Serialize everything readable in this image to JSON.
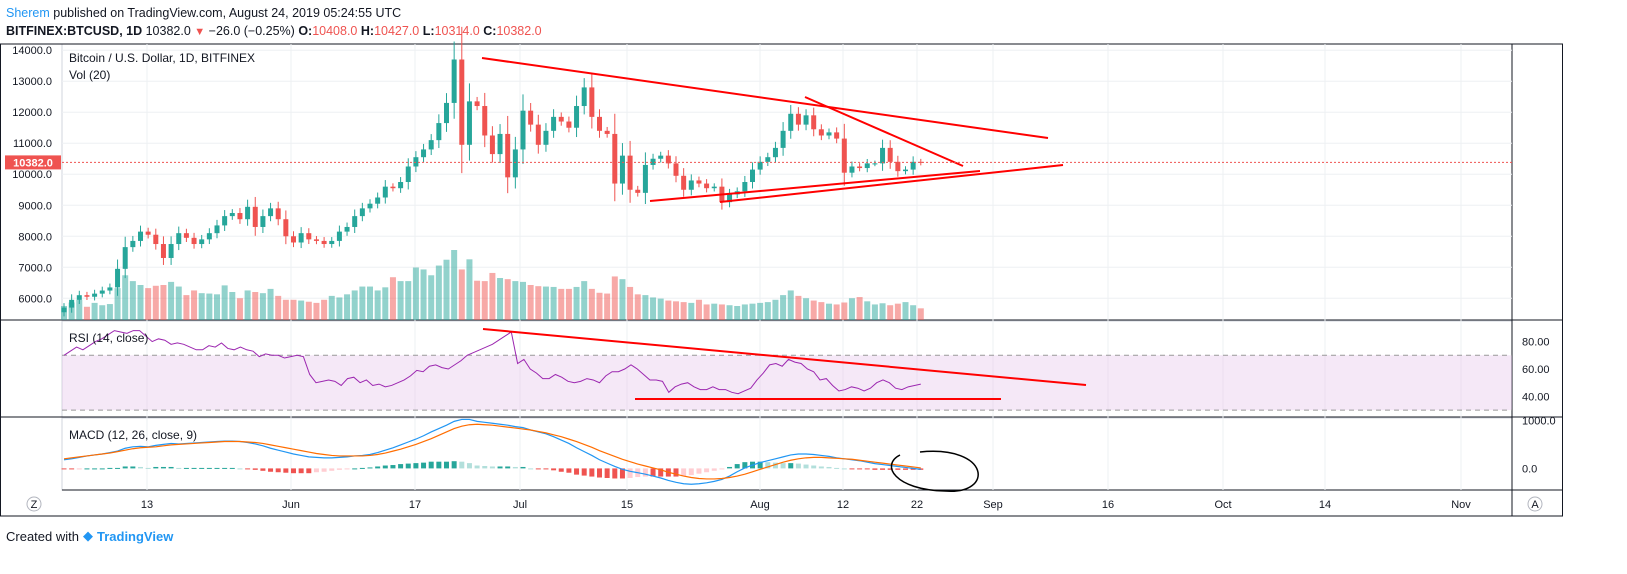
{
  "header": {
    "author": "Sherem",
    "published_text": "published on TradingView.com, August 24, 2019 05:24:55 UTC",
    "symbol": "BITFINEX:BTCUSD, 1D",
    "last": "10382.0",
    "change": "−26.0 (−0.25%)",
    "o_label": "O:",
    "o": "10408.0",
    "h_label": "H:",
    "h": "10427.0",
    "l_label": "L:",
    "l": "10314.0",
    "c_label": "C:",
    "c": "10382.0"
  },
  "footer": {
    "created_with": "Created with",
    "brand": "TradingView"
  },
  "colors": {
    "up": "#26a69a",
    "down": "#ef5350",
    "rsi": "#9c27b0",
    "macd": "#2196f3",
    "signal": "#ff6d00",
    "trend": "#ff0000"
  },
  "chart_data": [
    {
      "type": "candlestick",
      "title": "Bitcoin / U.S. Dollar, 1D, BITFINEX",
      "subtitle": "Vol (20)",
      "last_price_label": "10382.0",
      "ylim": [
        5300,
        14200
      ],
      "yticks": [
        "14000.0",
        "13000.0",
        "12000.0",
        "11000.0",
        "10000.0",
        "9000.0",
        "8000.0",
        "7000.0",
        "6000.0"
      ],
      "xticks": [
        "13",
        "Jun",
        "17",
        "Jul",
        "15",
        "Aug",
        "12",
        "22",
        "Sep",
        "16",
        "Oct",
        "14",
        "Nov"
      ],
      "close": [
        5700,
        5950,
        6100,
        6050,
        6150,
        6250,
        6350,
        6950,
        7650,
        7850,
        8150,
        8050,
        7750,
        7300,
        7750,
        8100,
        7950,
        7750,
        7900,
        8100,
        8350,
        8650,
        8750,
        8550,
        8950,
        8300,
        8650,
        8900,
        8550,
        8000,
        7800,
        8100,
        7900,
        7850,
        7750,
        7850,
        8150,
        8300,
        8650,
        8900,
        9050,
        9250,
        9600,
        9550,
        9750,
        10250,
        10550,
        10800,
        11100,
        11650,
        12300,
        13700,
        10950,
        12350,
        12200,
        11250,
        10650,
        11300,
        9900,
        10800,
        12050,
        11600,
        10950,
        11400,
        11850,
        11700,
        11500,
        12200,
        12800,
        11850,
        11400,
        11300,
        9700,
        10600,
        9500,
        9400,
        10300,
        10500,
        10600,
        10350,
        9950,
        9500,
        9800,
        9700,
        9550,
        9600,
        9100,
        9350,
        9450,
        9750,
        10150,
        10400,
        10550,
        10850,
        11400,
        11950,
        11600,
        11900,
        11450,
        11250,
        11350,
        11150,
        10050,
        10250,
        10200,
        10350,
        10350,
        10850,
        10400,
        10100,
        10150,
        10400,
        10382
      ],
      "volume": [
        360,
        450,
        520,
        340,
        440,
        380,
        410,
        820,
        1150,
        1000,
        900,
        820,
        880,
        900,
        980,
        860,
        640,
        760,
        690,
        680,
        660,
        890,
        720,
        560,
        760,
        720,
        690,
        800,
        620,
        520,
        520,
        500,
        470,
        440,
        520,
        620,
        580,
        660,
        760,
        860,
        860,
        760,
        840,
        1100,
        1000,
        1000,
        1350,
        1300,
        1150,
        1400,
        1550,
        1800,
        1300,
        1560,
        1010,
        1000,
        1210,
        1080,
        1050,
        1000,
        980,
        900,
        870,
        860,
        850,
        800,
        800,
        850,
        1000,
        800,
        700,
        680,
        1120,
        1050,
        850,
        660,
        640,
        580,
        550,
        500,
        480,
        460,
        440,
        520,
        400,
        420,
        400,
        380,
        360,
        400,
        420,
        440,
        460,
        520,
        640,
        760,
        620,
        560,
        500,
        460,
        420,
        400,
        450,
        560,
        590,
        480,
        400,
        430,
        380,
        420,
        460,
        380,
        300
      ]
    },
    {
      "type": "line",
      "title": "RSI (14, close)",
      "ylim": [
        25,
        95
      ],
      "yticks": [
        "80.00",
        "60.00",
        "40.00"
      ],
      "bands": [
        30,
        70
      ],
      "values": [
        70,
        73,
        76,
        74,
        77,
        80,
        82,
        85,
        88,
        87,
        86,
        88,
        88,
        84,
        80,
        82,
        81,
        78,
        79,
        78,
        76,
        74,
        74,
        77,
        76,
        79,
        75,
        74,
        76,
        74,
        73,
        69,
        71,
        70,
        70,
        68,
        69,
        70,
        69,
        56,
        50,
        51,
        52,
        51,
        48,
        53,
        54,
        50,
        52,
        48,
        49,
        47,
        48,
        50,
        52,
        55,
        59,
        58,
        62,
        63,
        61,
        60,
        63,
        66,
        70,
        72,
        74,
        76,
        78,
        81,
        84,
        87,
        64,
        67,
        60,
        57,
        53,
        53,
        56,
        54,
        51,
        50,
        51,
        53,
        52,
        50,
        55,
        58,
        58,
        60,
        63,
        60,
        56,
        52,
        52,
        51,
        43,
        47,
        49,
        50,
        47,
        45,
        45,
        47,
        45,
        45,
        43,
        42,
        44,
        46,
        52,
        57,
        63,
        64,
        62,
        67,
        65,
        64,
        60,
        58,
        52,
        53,
        48,
        44,
        45,
        47,
        46,
        44,
        46,
        50,
        52,
        50,
        46,
        45,
        47,
        48,
        49
      ]
    },
    {
      "type": "bar+line",
      "title": "MACD (12, 26, close, 9)",
      "ylim": [
        -450,
        1050
      ],
      "yticks": [
        "1000.0",
        "0.0"
      ],
      "macd": [
        180,
        200,
        230,
        260,
        280,
        300,
        330,
        360,
        420,
        450,
        460,
        450,
        480,
        500,
        520,
        510,
        520,
        530,
        540,
        550,
        560,
        570,
        570,
        560,
        540,
        510,
        470,
        420,
        380,
        340,
        300,
        270,
        240,
        230,
        220,
        220,
        230,
        240,
        260,
        270,
        290,
        330,
        380,
        430,
        490,
        550,
        610,
        680,
        760,
        830,
        900,
        980,
        1020,
        1020,
        980,
        960,
        940,
        920,
        900,
        870,
        850,
        800,
        760,
        720,
        660,
        590,
        520,
        430,
        350,
        270,
        180,
        110,
        40,
        -20,
        -60,
        -90,
        -120,
        -160,
        -200,
        -250,
        -290,
        -320,
        -330,
        -320,
        -300,
        -270,
        -230,
        -160,
        -70,
        10,
        70,
        120,
        160,
        200,
        240,
        280,
        300,
        300,
        290,
        270,
        250,
        220,
        200,
        180,
        160,
        130,
        100,
        80,
        60,
        40,
        20,
        0,
        -20
      ],
      "signal": [
        200,
        220,
        240,
        260,
        280,
        300,
        320,
        350,
        380,
        410,
        430,
        440,
        450,
        470,
        490,
        500,
        510,
        520,
        530,
        540,
        550,
        560,
        560,
        560,
        550,
        540,
        520,
        490,
        460,
        430,
        400,
        370,
        340,
        310,
        290,
        270,
        260,
        260,
        260,
        260,
        270,
        290,
        320,
        360,
        400,
        450,
        500,
        560,
        620,
        690,
        760,
        830,
        880,
        910,
        920,
        910,
        900,
        880,
        860,
        840,
        820,
        800,
        770,
        740,
        700,
        660,
        610,
        560,
        500,
        440,
        370,
        310,
        250,
        190,
        140,
        90,
        50,
        10,
        -30,
        -80,
        -120,
        -160,
        -190,
        -210,
        -220,
        -220,
        -210,
        -190,
        -160,
        -120,
        -70,
        -20,
        30,
        80,
        130,
        170,
        200,
        220,
        230,
        230,
        220,
        210,
        200,
        190,
        170,
        150,
        130,
        110,
        90,
        70,
        50,
        30,
        10
      ],
      "histogram": [
        -20,
        -20,
        -10,
        0,
        0,
        0,
        10,
        10,
        40,
        40,
        30,
        10,
        30,
        30,
        30,
        10,
        10,
        10,
        10,
        10,
        10,
        10,
        10,
        0,
        -10,
        -30,
        -50,
        -70,
        -80,
        -90,
        -100,
        -100,
        -100,
        -80,
        -70,
        -50,
        -30,
        -20,
        0,
        10,
        20,
        40,
        60,
        70,
        90,
        100,
        110,
        120,
        140,
        140,
        140,
        150,
        140,
        110,
        60,
        50,
        40,
        40,
        40,
        30,
        30,
        0,
        -10,
        -20,
        -40,
        -70,
        -90,
        -130,
        -150,
        -170,
        -190,
        -200,
        -210,
        -210,
        -200,
        -180,
        -170,
        -170,
        -170,
        -170,
        -170,
        -160,
        -140,
        -110,
        -80,
        -50,
        -20,
        30,
        90,
        130,
        140,
        140,
        130,
        120,
        110,
        110,
        100,
        80,
        60,
        40,
        30,
        10,
        0,
        -10,
        -10,
        -20,
        -30,
        -30,
        -30,
        -30,
        -30,
        -30,
        -30
      ]
    }
  ],
  "bottom": {
    "z_label": "Z",
    "a_label": "A"
  }
}
